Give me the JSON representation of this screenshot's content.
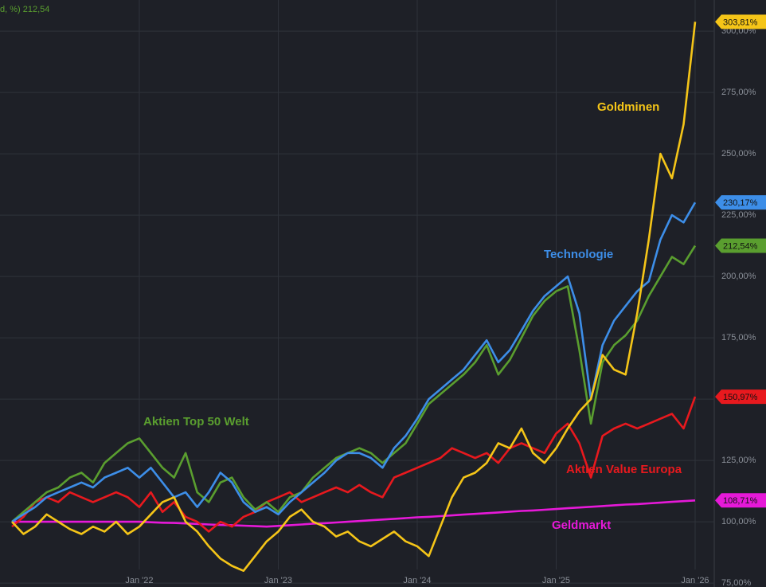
{
  "chart_data": {
    "type": "line",
    "annotation": "d, %)  212,54",
    "categories": [
      null,
      null,
      null,
      null,
      null,
      null,
      null,
      null,
      null,
      null,
      null,
      "Jan '22",
      null,
      null,
      null,
      null,
      null,
      null,
      null,
      null,
      null,
      null,
      null,
      "Jan '23",
      null,
      null,
      null,
      null,
      null,
      null,
      null,
      null,
      null,
      null,
      null,
      "Jan '24",
      null,
      null,
      null,
      null,
      null,
      null,
      null,
      null,
      null,
      null,
      null,
      "Jan '25",
      null,
      null,
      null,
      null,
      null,
      null,
      null,
      null,
      null,
      null,
      null,
      "Jan '26"
    ],
    "series": [
      {
        "name": "Goldminen",
        "color": "#f5c518",
        "values": [
          100,
          95,
          98,
          103,
          100,
          97,
          95,
          98,
          96,
          100,
          95,
          98,
          103,
          108,
          110,
          100,
          96,
          90,
          85,
          82,
          80,
          86,
          92,
          96,
          102,
          105,
          100,
          98,
          94,
          96,
          92,
          90,
          93,
          96,
          92,
          90,
          86,
          98,
          110,
          118,
          120,
          124,
          132,
          130,
          138,
          128,
          124,
          130,
          138,
          145,
          150,
          168,
          162,
          160,
          185,
          215,
          250,
          240,
          262,
          303.81
        ],
        "value_labels": [
          null,
          null,
          null,
          null,
          null,
          null,
          null,
          null,
          null,
          null,
          null,
          null,
          null,
          null,
          null,
          null,
          null,
          null,
          null,
          null,
          null,
          null,
          null,
          null,
          null,
          null,
          null,
          null,
          null,
          null,
          null,
          null,
          null,
          null,
          null,
          null,
          null,
          null,
          null,
          null,
          null,
          null,
          null,
          null,
          null,
          null,
          null,
          null,
          null,
          null,
          null,
          null,
          null,
          null,
          null,
          null,
          null,
          null,
          null,
          "303,81%"
        ]
      },
      {
        "name": "Technologie",
        "color": "#3d8ee8",
        "values": [
          100,
          103,
          106,
          110,
          112,
          114,
          116,
          114,
          118,
          120,
          122,
          118,
          122,
          116,
          110,
          112,
          106,
          112,
          120,
          116,
          108,
          104,
          106,
          103,
          108,
          112,
          116,
          120,
          125,
          128,
          128,
          126,
          122,
          130,
          135,
          142,
          150,
          154,
          158,
          162,
          168,
          174,
          165,
          170,
          178,
          186,
          192,
          196,
          200,
          185,
          150,
          172,
          182,
          188,
          194,
          198,
          215,
          225,
          222,
          230.17
        ],
        "value_labels": [
          null,
          null,
          null,
          null,
          null,
          null,
          null,
          null,
          null,
          null,
          null,
          null,
          null,
          null,
          null,
          null,
          null,
          null,
          null,
          null,
          null,
          null,
          null,
          null,
          null,
          null,
          null,
          null,
          null,
          null,
          null,
          null,
          null,
          null,
          null,
          null,
          null,
          null,
          null,
          null,
          null,
          null,
          null,
          null,
          null,
          null,
          null,
          null,
          null,
          null,
          null,
          null,
          null,
          null,
          null,
          null,
          null,
          null,
          null,
          "230,17%"
        ]
      },
      {
        "name": "Aktien Top 50 Welt",
        "color": "#5a9e2f",
        "values": [
          100,
          104,
          108,
          112,
          114,
          118,
          120,
          116,
          124,
          128,
          132,
          134,
          128,
          122,
          118,
          128,
          112,
          108,
          116,
          118,
          110,
          105,
          108,
          104,
          110,
          112,
          118,
          122,
          126,
          128,
          130,
          128,
          124,
          128,
          132,
          140,
          148,
          152,
          156,
          160,
          165,
          172,
          160,
          166,
          175,
          184,
          190,
          194,
          196,
          170,
          140,
          165,
          172,
          176,
          182,
          192,
          200,
          208,
          205,
          212.54
        ],
        "value_labels": [
          null,
          null,
          null,
          null,
          null,
          null,
          null,
          null,
          null,
          null,
          null,
          null,
          null,
          null,
          null,
          null,
          null,
          null,
          null,
          null,
          null,
          null,
          null,
          null,
          null,
          null,
          null,
          null,
          null,
          null,
          null,
          null,
          null,
          null,
          null,
          null,
          null,
          null,
          null,
          null,
          null,
          null,
          null,
          null,
          null,
          null,
          null,
          null,
          null,
          null,
          null,
          null,
          null,
          null,
          null,
          null,
          null,
          null,
          null,
          "212,54%"
        ]
      },
      {
        "name": "Aktien Value Europa",
        "color": "#e8191e",
        "values": [
          98,
          102,
          108,
          110,
          108,
          112,
          110,
          108,
          110,
          112,
          110,
          106,
          112,
          104,
          108,
          102,
          100,
          96,
          100,
          98,
          102,
          104,
          108,
          110,
          112,
          108,
          110,
          112,
          114,
          112,
          115,
          112,
          110,
          118,
          120,
          122,
          124,
          126,
          130,
          128,
          126,
          128,
          124,
          130,
          132,
          130,
          128,
          136,
          140,
          132,
          118,
          135,
          138,
          140,
          138,
          140,
          142,
          144,
          138,
          150.97
        ],
        "value_labels": [
          null,
          null,
          null,
          null,
          null,
          null,
          null,
          null,
          null,
          null,
          null,
          null,
          null,
          null,
          null,
          null,
          null,
          null,
          null,
          null,
          null,
          null,
          null,
          null,
          null,
          null,
          null,
          null,
          null,
          null,
          null,
          null,
          null,
          null,
          null,
          null,
          null,
          null,
          null,
          null,
          null,
          null,
          null,
          null,
          null,
          null,
          null,
          null,
          null,
          null,
          null,
          null,
          null,
          null,
          null,
          null,
          null,
          null,
          null,
          "150,97%"
        ]
      },
      {
        "name": "Geldmarkt",
        "color": "#e619d8",
        "values": [
          100,
          100,
          100,
          100,
          100,
          100,
          100,
          100,
          100,
          100,
          100,
          100,
          99.8,
          99.6,
          99.5,
          99.3,
          99.1,
          98.9,
          98.7,
          98.6,
          98.4,
          98.2,
          98.0,
          98.3,
          98.6,
          98.9,
          99.2,
          99.4,
          99.7,
          100.0,
          100.3,
          100.6,
          100.9,
          101.2,
          101.5,
          101.8,
          102.0,
          102.3,
          102.6,
          102.9,
          103.2,
          103.5,
          103.8,
          104.1,
          104.4,
          104.6,
          104.9,
          105.2,
          105.5,
          105.8,
          106.1,
          106.4,
          106.7,
          107.0,
          107.2,
          107.5,
          107.8,
          108.1,
          108.4,
          108.71
        ],
        "value_labels": [
          null,
          null,
          null,
          null,
          null,
          null,
          null,
          null,
          null,
          null,
          null,
          null,
          null,
          null,
          null,
          null,
          null,
          null,
          null,
          null,
          null,
          null,
          null,
          null,
          null,
          null,
          null,
          null,
          null,
          null,
          null,
          null,
          null,
          null,
          null,
          null,
          null,
          null,
          null,
          null,
          null,
          null,
          null,
          null,
          null,
          null,
          null,
          null,
          null,
          null,
          null,
          null,
          null,
          null,
          null,
          null,
          null,
          null,
          null,
          "108,71%"
        ]
      }
    ],
    "ylim": [
      73.4,
      312.7
    ],
    "yticks": [
      {
        "value": 75,
        "label": "75,00%"
      },
      {
        "value": 100,
        "label": "100,00%"
      },
      {
        "value": 125,
        "label": "125,00%"
      },
      {
        "value": 150,
        "label": "150,00%"
      },
      {
        "value": 175,
        "label": "175,00%"
      },
      {
        "value": 200,
        "label": "200,00%"
      },
      {
        "value": 225,
        "label": "225,00%"
      },
      {
        "value": 250,
        "label": "250,00%"
      },
      {
        "value": 275,
        "label": "275,00%"
      },
      {
        "value": 300,
        "label": "300,00%"
      }
    ],
    "grid": true
  }
}
